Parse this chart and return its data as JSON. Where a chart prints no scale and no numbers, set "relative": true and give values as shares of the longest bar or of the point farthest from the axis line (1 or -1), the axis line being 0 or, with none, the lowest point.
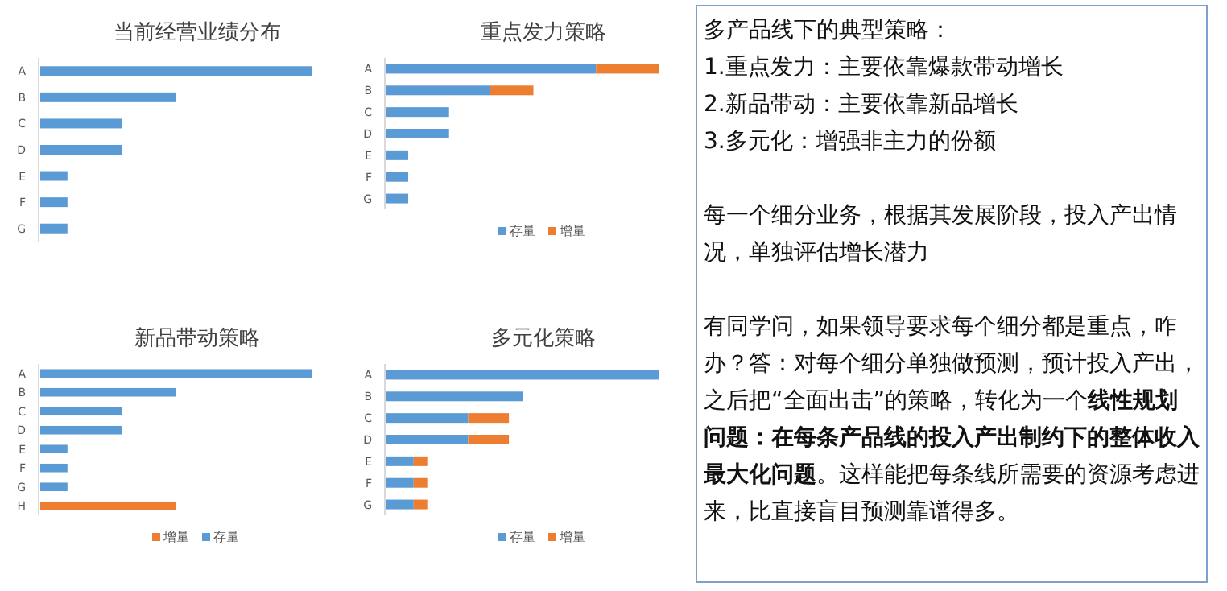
{
  "chart_data": [
    {
      "type": "bar",
      "title": "当前经营业绩分布",
      "orientation": "horizontal",
      "stacked": true,
      "relative": true,
      "categories": [
        "A",
        "B",
        "C",
        "D",
        "E",
        "F",
        "G"
      ],
      "series": [
        {
          "color": "#5b9bd5",
          "values": [
            1,
            0.5,
            0.3,
            0.3,
            0.1,
            0.1,
            0.1
          ]
        }
      ]
    },
    {
      "type": "bar",
      "title": "重点发力策略",
      "orientation": "horizontal",
      "stacked": true,
      "relative": true,
      "legend": "bottom",
      "categories": [
        "A",
        "B",
        "C",
        "D",
        "E",
        "F",
        "G"
      ],
      "series": [
        {
          "name": "存量",
          "color": "#5b9bd5",
          "values": [
            0.77,
            0.38,
            0.23,
            0.23,
            0.08,
            0.08,
            0.08
          ]
        },
        {
          "name": "增量",
          "color": "#ed7d31",
          "values": [
            0.23,
            0.16,
            null,
            null,
            null,
            null,
            null
          ]
        }
      ]
    },
    {
      "type": "bar",
      "title": "新品带动策略",
      "orientation": "horizontal",
      "stacked": true,
      "relative": true,
      "legend": "bottom",
      "categories": [
        "A",
        "B",
        "C",
        "D",
        "E",
        "F",
        "G",
        "H"
      ],
      "series": [
        {
          "name": "增量",
          "color": "#ed7d31",
          "values": [
            null,
            null,
            null,
            null,
            null,
            null,
            null,
            0.5
          ]
        },
        {
          "name": "存量",
          "color": "#5b9bd5",
          "values": [
            1,
            0.5,
            0.3,
            0.3,
            0.1,
            0.1,
            0.1,
            null
          ]
        }
      ]
    },
    {
      "type": "bar",
      "title": "多元化策略",
      "orientation": "horizontal",
      "stacked": true,
      "relative": true,
      "legend": "bottom",
      "categories": [
        "A",
        "B",
        "C",
        "D",
        "E",
        "F",
        "G"
      ],
      "series": [
        {
          "name": "存量",
          "color": "#5b9bd5",
          "values": [
            1,
            0.5,
            0.3,
            0.3,
            0.1,
            0.1,
            0.1
          ]
        },
        {
          "name": "增量",
          "color": "#ed7d31",
          "values": [
            null,
            null,
            0.15,
            0.15,
            0.05,
            0.05,
            0.05
          ]
        }
      ]
    },
    {
      "type": "other",
      "annotations": [
        "多产品线下的典型策略：",
        "1.重点发力：主要依靠爆款带动增长",
        "2.新品带动：主要依靠新品增长",
        "3.多元化：增强非主力的份额",
        "每一个细分业务，根据其发展阶段，投入产出情况，单独评估增长潜力",
        "有同学问，如果领导要求每个细分都是重点，咋办？答：对每个细分单独做预测，预计投入产出，之后把“全面出击”的策略，转化为一个**线性规划问题：在每条产品线的投入产出制约下的整体收入最大化问题**。这样能把每条线所需要的资源考虑进来，比直接盲目预测靠谱得多。"
      ]
    }
  ]
}
